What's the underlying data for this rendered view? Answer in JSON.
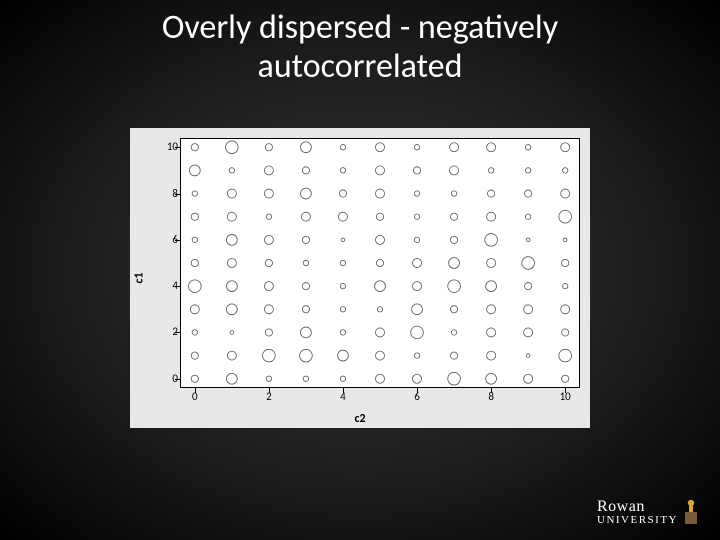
{
  "title_line1": "Overly dispersed - negatively",
  "title_line2": "autocorrelated",
  "chart": {
    "type": "scatter",
    "xlabel": "c2",
    "ylabel": "c1",
    "label_fontsize": 12,
    "tick_fontsize": 11,
    "xlim": [
      -0.4,
      10.4
    ],
    "ylim": [
      -0.4,
      10.4
    ],
    "xticks": [
      0,
      2,
      4,
      6,
      8,
      10
    ],
    "yticks": [
      0,
      2,
      4,
      6,
      8,
      10
    ],
    "background_color": "#ffffff",
    "panel_color": "#e8e8e8",
    "marker_stroke": "#555555",
    "marker_fill": "none",
    "marker_stroke_width": 0.8,
    "grid_cols": [
      0,
      1,
      2,
      3,
      4,
      5,
      6,
      7,
      8,
      9,
      10
    ],
    "grid_rows": [
      0,
      1,
      2,
      3,
      4,
      5,
      6,
      7,
      8,
      9,
      10
    ],
    "radii": [
      [
        4,
        6,
        3,
        3,
        3,
        5,
        5,
        7,
        6,
        5,
        4
      ],
      [
        4,
        5,
        7,
        7,
        6,
        5,
        3,
        4,
        5,
        2,
        7
      ],
      [
        3,
        2,
        4,
        6,
        3,
        5,
        7,
        3,
        5,
        5,
        4
      ],
      [
        5,
        6,
        5,
        4,
        3,
        3,
        6,
        4,
        5,
        5,
        5
      ],
      [
        7,
        6,
        5,
        4,
        3,
        6,
        5,
        7,
        6,
        4,
        3
      ],
      [
        4,
        5,
        4,
        3,
        3,
        4,
        5,
        6,
        5,
        7,
        4
      ],
      [
        3,
        6,
        5,
        4,
        2,
        5,
        3,
        4,
        7,
        2,
        2
      ],
      [
        4,
        5,
        3,
        5,
        5,
        4,
        3,
        4,
        5,
        3,
        7
      ],
      [
        3,
        5,
        5,
        6,
        4,
        5,
        3,
        3,
        4,
        4,
        5
      ],
      [
        6,
        3,
        5,
        4,
        3,
        5,
        4,
        5,
        3,
        3,
        3
      ],
      [
        4,
        7,
        4,
        6,
        3,
        5,
        3,
        5,
        5,
        3,
        5
      ]
    ],
    "radius_scale": 0.9
  },
  "logo": {
    "line1": "Rowan",
    "line2": "UNIVERSITY",
    "brown": "#7a5a3a",
    "gold": "#d4a830"
  }
}
